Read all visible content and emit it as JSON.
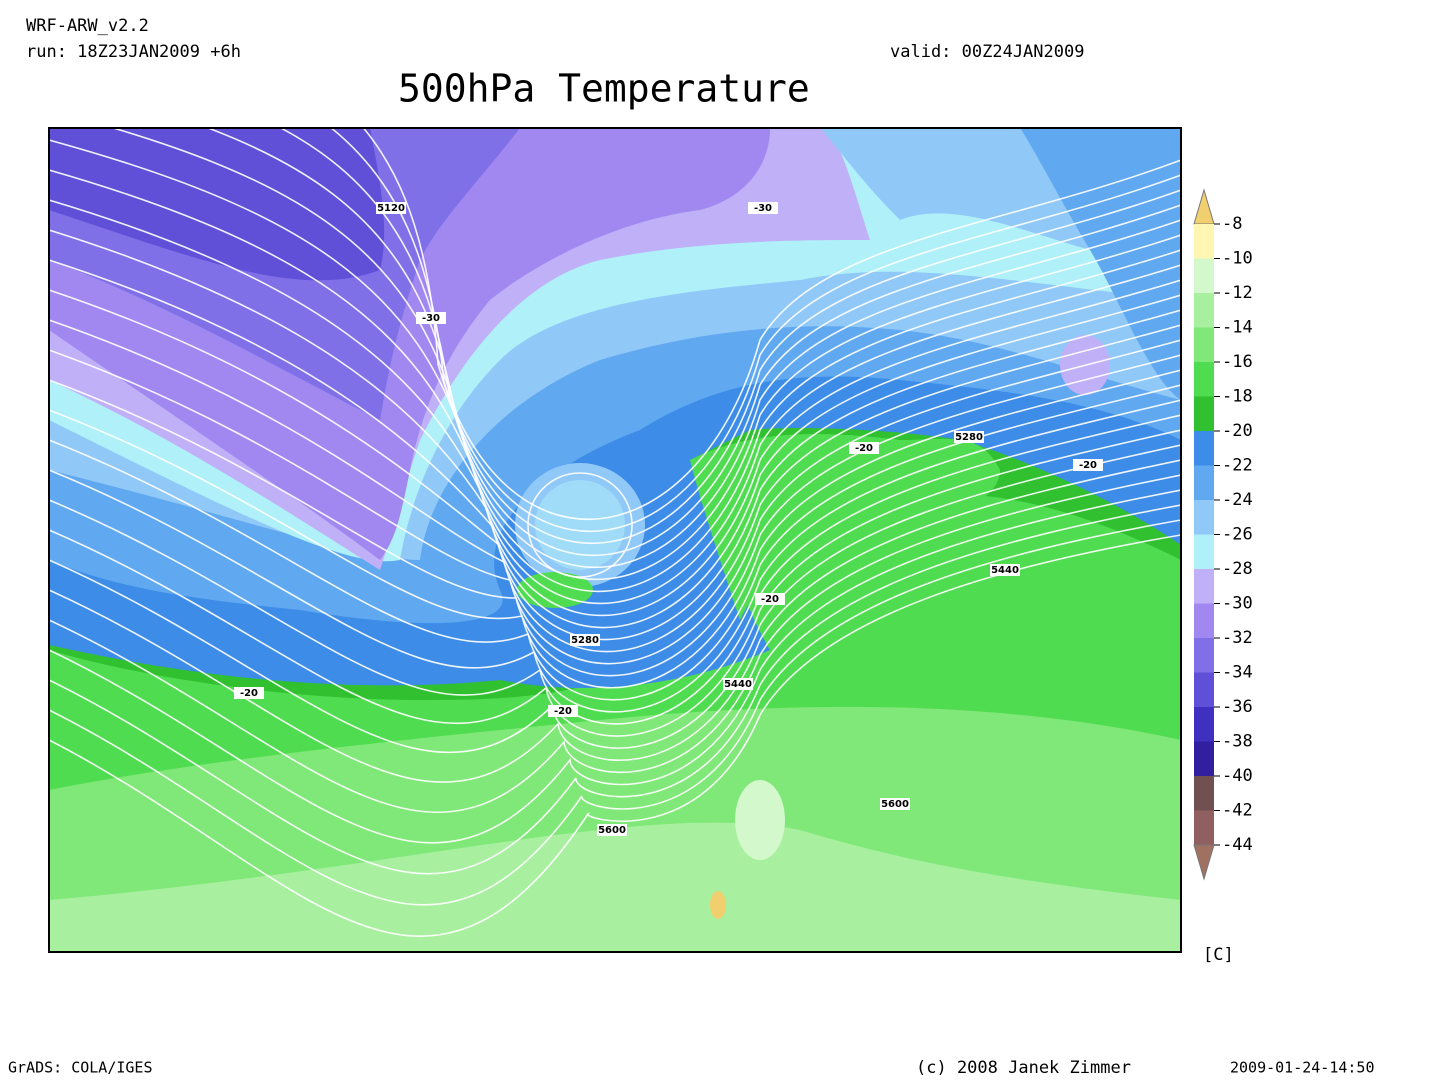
{
  "header": {
    "model": "WRF-ARW_v2.2",
    "run": "run: 18Z23JAN2009 +6h",
    "valid": "valid: 00Z24JAN2009",
    "title": "500hPa Temperature"
  },
  "map": {
    "contour_labels": [
      "5120",
      "-30",
      "-30",
      "5280",
      "-20",
      "-20",
      "5440",
      "-20",
      "5280",
      "-20",
      "5440",
      "-20",
      "5600",
      "5600"
    ]
  },
  "colorbar": {
    "labels": [
      -8,
      -10,
      -12,
      -14,
      -16,
      -18,
      -20,
      -22,
      -24,
      -26,
      -28,
      -30,
      -32,
      -34,
      -36,
      -38,
      -40,
      -42,
      -44
    ],
    "colors": [
      "#f2cf6e",
      "#fff6b4",
      "#d2f8cc",
      "#a8f0a0",
      "#80e878",
      "#50dc50",
      "#30c030",
      "#3c8ce8",
      "#60a8f0",
      "#90c8f8",
      "#b0f0f8",
      "#c0b0f8",
      "#a088f0",
      "#8070e8",
      "#6050d8",
      "#4030c0",
      "#3020a0",
      "#705050",
      "#906060",
      "#a07060"
    ],
    "unit": "[C]"
  },
  "footer": {
    "software": "GrADS: COLA/IGES",
    "copyright": "(c) 2008 Janek Zimmer",
    "timestamp": "2009-01-24-14:50"
  }
}
